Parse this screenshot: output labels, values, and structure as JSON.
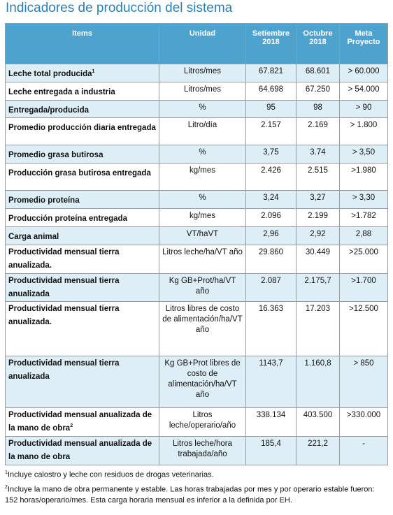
{
  "title": "Indicadores de producción del sistema",
  "columns": [
    "Items",
    "Unidad",
    "Setiembre 2018",
    "Octubre 2018",
    "Meta Proyecto"
  ],
  "rows": [
    {
      "item": "Leche total producida",
      "sup": "1",
      "unidad": "Litros/mes",
      "sep": "67.821",
      "oct": "68.601",
      "meta": "> 60.000"
    },
    {
      "item": "Leche entregada a industria",
      "sup": "",
      "unidad": "Litros/mes",
      "sep": "64.698",
      "oct": "67.250",
      "meta": "> 54.000"
    },
    {
      "item": "Entregada/producida",
      "sup": "",
      "unidad": "%",
      "sep": "95",
      "oct": "98",
      "meta": "> 90"
    },
    {
      "item": "Promedio producción diaria entregada",
      "sup": "",
      "unidad": "Litro/día",
      "sep": "2.157",
      "oct": "2.169",
      "meta": "> 1.800"
    },
    {
      "item": "Promedio grasa butirosa",
      "sup": "",
      "unidad": "%",
      "sep": "3,75",
      "oct": "3.74",
      "meta": "> 3,50"
    },
    {
      "item": "Producción grasa butirosa entregada",
      "sup": "",
      "unidad": "kg/mes",
      "sep": "2.426",
      "oct": "2.515",
      "meta": ">1.980"
    },
    {
      "item": "Promedio proteína",
      "sup": "",
      "unidad": "%",
      "sep": "3,24",
      "oct": "3,27",
      "meta": "> 3,30"
    },
    {
      "item": "Producción proteína entregada",
      "sup": "",
      "unidad": "kg/mes",
      "sep": "2.096",
      "oct": "2.199",
      "meta": ">1.782"
    },
    {
      "item": "Carga animal",
      "sup": "",
      "unidad": "VT/haVT",
      "sep": "2,96",
      "oct": "2,92",
      "meta": "2,88"
    },
    {
      "item": "Productividad mensual tierra anualizada.",
      "sup": "",
      "unidad": "Litros leche/ha/VT año",
      "sep": "29.860",
      "oct": "30.449",
      "meta": ">25.000"
    },
    {
      "item": "Productividad mensual tierra anualizada",
      "sup": "",
      "unidad": "Kg GB+Prot/ha/VT año",
      "sep": "2.087",
      "oct": "2.175,7",
      "meta": ">1.700"
    },
    {
      "item": "Productividad mensual tierra anualizada.",
      "sup": "",
      "unidad": "Litros libres de costo de alimentación/ha/VT año",
      "sep": "16.363",
      "oct": "17.203",
      "meta": ">12.500"
    },
    {
      "item": "Productividad mensual tierra anualizada",
      "sup": "",
      "unidad": "Kg GB+Prot libres de costo de alimentación/ha/VT año",
      "sep": "1143,7",
      "oct": "1.160,8",
      "meta": "> 850"
    },
    {
      "item": "Productividad mensual anualizada de la mano de obra",
      "sup": "2",
      "unidad": "Litros leche/operario/año",
      "sep": "338.134",
      "oct": "403.500",
      "meta": ">330.000"
    },
    {
      "item": "Productividad mensual anualizada de la mano de obra",
      "sup": "",
      "unidad": "Litros leche/hora trabajada/año",
      "sep": "185,4",
      "oct": "221,2",
      "meta": "-"
    }
  ],
  "footnotes": [
    {
      "mark": "1",
      "text": "Incluye calostro y leche con residuos de drogas veterinarias."
    },
    {
      "mark": "2",
      "text": "Incluye la mano de obra permanente y estable. Las horas trabajadas por mes y por operario estable fueron: 152 horas/operario/mes. Esta carga horaria mensual es inferior a la definida por EH."
    }
  ]
}
